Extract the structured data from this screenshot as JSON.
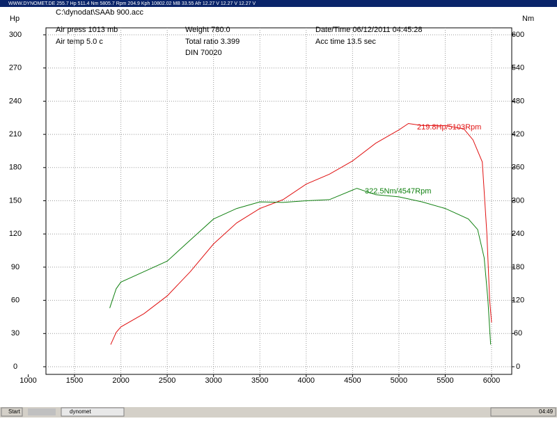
{
  "window_title": "WWW.DYNOMET.DE  255.7 Hp 511.4 Nm 5805.7 Rpm 204.9 Kph   10802.02 MB 33.55 Afr 12.27 V 12.27 V 12.27 V",
  "file_path": "C:\\dynodat\\SAAb 900.acc",
  "info": {
    "air_press": "Air press  1013 mb",
    "air_temp": "Air temp    5.0 c",
    "weight": "Weight    780.0",
    "total_ratio": "Total ratio 3.399",
    "din": "DIN 70020",
    "date_time": "Date/Time  06/12/2011 04:45:28",
    "acc_time": "Acc time   13.5 sec"
  },
  "chart_data": {
    "type": "line",
    "y_label": "Hp",
    "y2_label": "Nm",
    "xlim": [
      1000,
      6000
    ],
    "xticks": [
      1000,
      1500,
      2000,
      2500,
      3000,
      3500,
      4000,
      4500,
      5000,
      5500,
      6000
    ],
    "ylim": [
      0,
      300
    ],
    "yticks": [
      0,
      30,
      60,
      90,
      120,
      150,
      180,
      210,
      240,
      270,
      300
    ],
    "y2lim": [
      0,
      600
    ],
    "y2ticks": [
      0,
      60,
      120,
      180,
      240,
      300,
      360,
      420,
      480,
      540,
      600
    ],
    "grid": true,
    "series": [
      {
        "color": "#e01010",
        "x": [
          1890,
          1950,
          2000,
          2250,
          2500,
          2750,
          3000,
          3250,
          3500,
          3750,
          4000,
          4250,
          4500,
          4750,
          5000,
          5103,
          5250,
          5500,
          5700,
          5800,
          5900,
          5950,
          5980,
          6000
        ],
        "values": [
          20,
          31,
          36,
          48,
          64,
          86,
          111,
          130,
          143,
          151,
          165,
          174,
          186,
          202,
          214,
          219.8,
          218,
          218,
          215,
          205,
          185,
          120,
          60,
          40
        ]
      },
      {
        "color": "#108010",
        "axis": "y2",
        "x": [
          1880,
          1950,
          2000,
          2250,
          2500,
          2750,
          3000,
          3250,
          3500,
          3750,
          4000,
          4250,
          4547,
          4750,
          5000,
          5250,
          5500,
          5750,
          5850,
          5920,
          5960,
          5990
        ],
        "values": [
          106,
          141,
          153,
          172,
          191,
          229,
          267,
          286,
          298,
          297,
          300,
          302,
          322.5,
          311,
          307,
          298,
          286,
          267,
          248,
          197,
          122,
          40
        ]
      }
    ],
    "annotations": [
      "219.8Hp/5103Rpm",
      "322.5Nm/4547Rpm"
    ]
  },
  "taskbar": {
    "start": "Start",
    "task": "dynomet",
    "clock": "04:49"
  }
}
